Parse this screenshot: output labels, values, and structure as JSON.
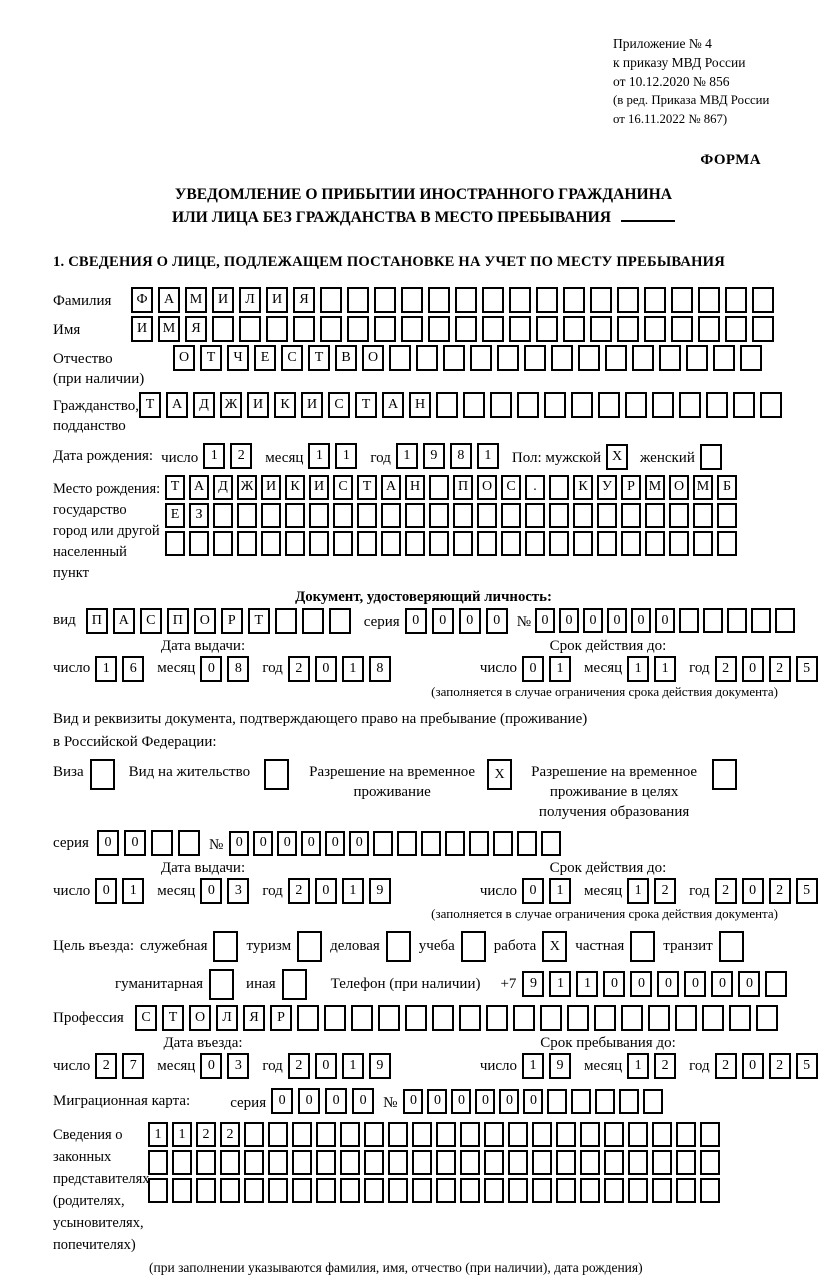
{
  "ref_block": {
    "lines": [
      "Приложение № 4",
      "к приказу МВД России",
      "от 10.12.2020 № 856",
      "(в ред. Приказа МВД России",
      "от 16.11.2022 № 867)"
    ]
  },
  "form_label": "ФОРМА",
  "title": {
    "line1": "УВЕДОМЛЕНИЕ О ПРИБЫТИИ ИНОСТРАННОГО ГРАЖДАНИНА",
    "line2": "ИЛИ ЛИЦА БЕЗ ГРАЖДАНСТВА В МЕСТО ПРЕБЫВАНИЯ"
  },
  "section1_title": "1. СВЕДЕНИЯ О ЛИЦЕ, ПОДЛЕЖАЩЕМ ПОСТАНОВКЕ НА УЧЕТ ПО МЕСТУ ПРЕБЫВАНИЯ",
  "common": {
    "day": "число",
    "month": "месяц",
    "year": "год",
    "series": "серия",
    "number": "№"
  },
  "person": {
    "surname": {
      "label": "Фамилия",
      "value": "ФАМИЛИЯ",
      "cells": 24
    },
    "name": {
      "label": "Имя",
      "value": "ИМЯ",
      "cells": 24
    },
    "patronymic": {
      "label": "Отчество",
      "note": "(при наличии)",
      "value": "ОТЧЕСТВО",
      "cells": 22
    },
    "citizenship": {
      "label": "Гражданство,",
      "label2": "подданство",
      "value": "ТАДЖИКИСТАН",
      "cells": 24
    },
    "birth_date": {
      "label": "Дата рождения:",
      "day": {
        "value": "12",
        "cells": 2
      },
      "month": {
        "value": "11",
        "cells": 2
      },
      "year": {
        "value": "1981",
        "cells": 4
      }
    },
    "sex": {
      "label": "Пол: мужской",
      "male_checked": true,
      "female_label": "женский",
      "female_checked": false
    },
    "birth_place": {
      "label1": "Место рождения:",
      "label2": "государство",
      "label3": "город или другой",
      "label4": "населенный пункт",
      "row1": {
        "value": "ТАДЖИКИСТАН ПОС. КУРМОМБ",
        "cells": 24
      },
      "row2": {
        "value": "ЕЗ",
        "cells": 24
      },
      "row3": {
        "value": "",
        "cells": 24
      }
    }
  },
  "identity_doc": {
    "header": "Документ, удостоверяющий личность:",
    "kind_label": "вид",
    "kind": {
      "value": "ПАСПОРТ",
      "cells": 10
    },
    "series": {
      "value": "0000",
      "cells": 4
    },
    "number": {
      "value": "000000",
      "cells": 11
    },
    "issue_header": "Дата выдачи:",
    "issue": {
      "day": {
        "value": "16",
        "cells": 2
      },
      "month": {
        "value": "08",
        "cells": 2
      },
      "year": {
        "value": "2018",
        "cells": 4
      }
    },
    "valid_header": "Срок действия до:",
    "valid": {
      "day": {
        "value": "01",
        "cells": 2
      },
      "month": {
        "value": "11",
        "cells": 2
      },
      "year": {
        "value": "2025",
        "cells": 4
      }
    },
    "note": "(заполняется в случае ограничения срока действия документа)"
  },
  "residence_doc": {
    "intro1": "Вид и реквизиты документа, подтверждающего право на пребывание (проживание)",
    "intro2": "в Российской Федерации:",
    "options": [
      {
        "label": "Виза",
        "checked": false
      },
      {
        "label": "Вид на жительство",
        "checked": false
      },
      {
        "label": "Разрешение на временное проживание",
        "checked": true
      },
      {
        "label": "Разрешение на временное проживание в целях получения образования",
        "checked": false
      }
    ],
    "series": {
      "value": "00",
      "cells": 4
    },
    "number": {
      "value": "000000",
      "cells": 14
    },
    "issue_header": "Дата выдачи:",
    "issue": {
      "day": {
        "value": "01",
        "cells": 2
      },
      "month": {
        "value": "03",
        "cells": 2
      },
      "year": {
        "value": "2019",
        "cells": 4
      }
    },
    "valid_header": "Срок действия до:",
    "valid": {
      "day": {
        "value": "01",
        "cells": 2
      },
      "month": {
        "value": "12",
        "cells": 2
      },
      "year": {
        "value": "2025",
        "cells": 4
      }
    },
    "note": "(заполняется в случае ограничения срока действия документа)"
  },
  "entry": {
    "purpose_prefix": "Цель въезда:",
    "purposes": [
      {
        "label": "служебная",
        "checked": false
      },
      {
        "label": "туризм",
        "checked": false
      },
      {
        "label": "деловая",
        "checked": false
      },
      {
        "label": "учеба",
        "checked": false
      },
      {
        "label": "работа",
        "checked": true
      },
      {
        "label": "частная",
        "checked": false
      },
      {
        "label": "транзит",
        "checked": false
      }
    ],
    "purposes2": [
      {
        "label": "гуманитарная",
        "checked": false
      },
      {
        "label": "иная",
        "checked": false
      }
    ],
    "phone_label": "Телефон (при наличии)",
    "phone_prefix": "+7",
    "phone": {
      "value": "911000000",
      "cells": 10
    },
    "profession": {
      "label": "Профессия",
      "value": "СТОЛЯР",
      "cells": 24
    },
    "entry_header": "Дата въезда:",
    "entry_date": {
      "day": {
        "value": "27",
        "cells": 2
      },
      "month": {
        "value": "03",
        "cells": 2
      },
      "year": {
        "value": "2019",
        "cells": 4
      }
    },
    "stay_header": "Срок пребывания до:",
    "stay_until": {
      "day": {
        "value": "19",
        "cells": 2
      },
      "month": {
        "value": "12",
        "cells": 2
      },
      "year": {
        "value": "2025",
        "cells": 4
      }
    }
  },
  "migration_card": {
    "label": "Миграционная карта:",
    "series": {
      "value": "0000",
      "cells": 4
    },
    "number": {
      "value": "000000",
      "cells": 11
    }
  },
  "representatives": {
    "label": "Сведения о законных представителях (родителях, усыновителях, попечителях)",
    "row1": {
      "value": "1122",
      "cells": 24
    },
    "row2": {
      "value": "",
      "cells": 24
    },
    "row3": {
      "value": "",
      "cells": 24
    },
    "note": "(при заполнении указываются фамилия, имя, отчество (при наличии), дата рождения)"
  }
}
